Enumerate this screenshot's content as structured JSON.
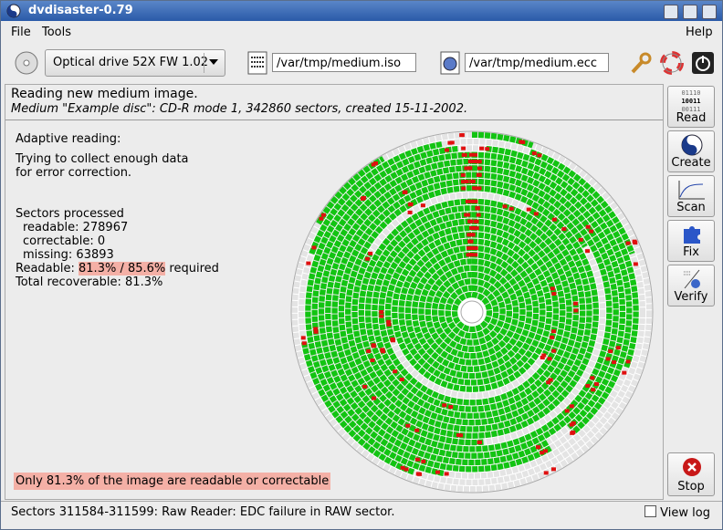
{
  "window": {
    "title": "dvdisaster-0.79"
  },
  "menu": [
    "File",
    "Tools",
    "Help"
  ],
  "toolbar": {
    "drive": "Optical drive 52X FW 1.02",
    "image_file": "/var/tmp/medium.iso",
    "ecc_file": "/var/tmp/medium.ecc"
  },
  "header": {
    "title": "Reading new medium image.",
    "subtitle": "Medium \"Example disc\": CD-R mode 1, 342860 sectors, created 15-11-2002."
  },
  "status_panel": {
    "mode": "Adaptive reading:",
    "description": [
      "Trying to collect enough data",
      "for error correction."
    ],
    "sectors_heading": "Sectors processed",
    "readable": "readable: 278967",
    "correctable": "correctable: 0",
    "missing": "missing: 63893",
    "readable_label": "Readable:",
    "readable_ratio": "81.3% / 85.6%",
    "required": "required",
    "total": "Total recoverable: 81.3%",
    "warning": "Only 81.3% of the image are readable or correctable"
  },
  "read_icon_bits": [
    "01110",
    "10011",
    "00111"
  ],
  "actions": [
    "Read",
    "Create",
    "Scan",
    "Fix",
    "Verify"
  ],
  "stop": "Stop",
  "statusbar": {
    "message": "Sectors 311584-311599: Raw Reader: EDC failure in RAW sector.",
    "view_log": "View log"
  }
}
